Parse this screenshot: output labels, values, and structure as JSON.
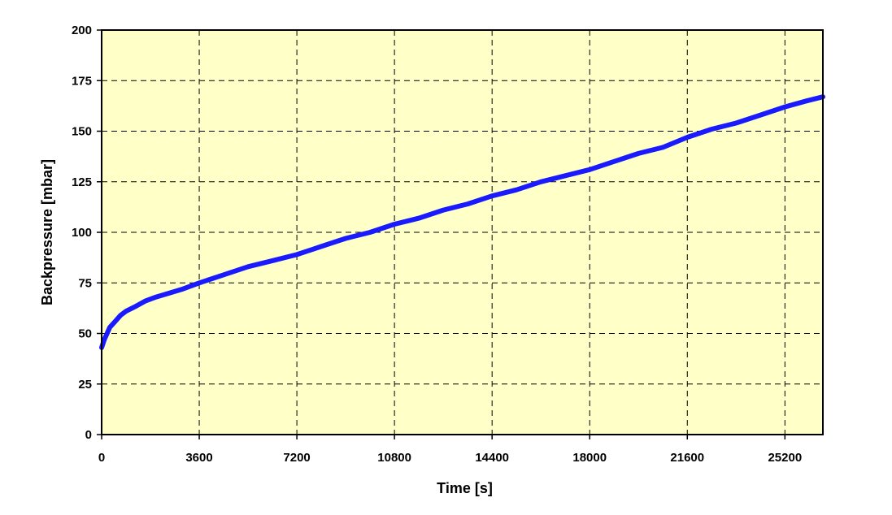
{
  "chart_data": {
    "type": "line",
    "title": "",
    "xlabel": "Time [s]",
    "ylabel": "Backpressure [mbar]",
    "xlim": [
      0,
      26600
    ],
    "ylim": [
      0,
      200
    ],
    "x_ticks": [
      0,
      3600,
      7200,
      10800,
      14400,
      18000,
      21600,
      25200
    ],
    "y_ticks": [
      0,
      25,
      50,
      75,
      100,
      125,
      150,
      175,
      200
    ],
    "grid": true,
    "legend": "none",
    "colors": {
      "plot_background": "#ffffc8",
      "series": "#1a1aff",
      "axis": "#000000"
    },
    "series": [
      {
        "x": [
          0,
          100,
          200,
          300,
          500,
          700,
          900,
          1200,
          1600,
          2000,
          2500,
          3000,
          3600,
          4500,
          5400,
          6300,
          7200,
          8100,
          9000,
          9900,
          10800,
          11700,
          12600,
          13500,
          14400,
          15300,
          16200,
          17100,
          18000,
          18900,
          19800,
          20700,
          21600,
          22500,
          23400,
          24300,
          25200,
          26000,
          26600
        ],
        "y": [
          43,
          47,
          50,
          53,
          56,
          59,
          61,
          63,
          66,
          68,
          70,
          72,
          75,
          79,
          83,
          86,
          89,
          93,
          97,
          100,
          104,
          107,
          111,
          114,
          118,
          121,
          125,
          128,
          131,
          135,
          139,
          142,
          147,
          151,
          154,
          158,
          162,
          165,
          167
        ]
      }
    ]
  }
}
